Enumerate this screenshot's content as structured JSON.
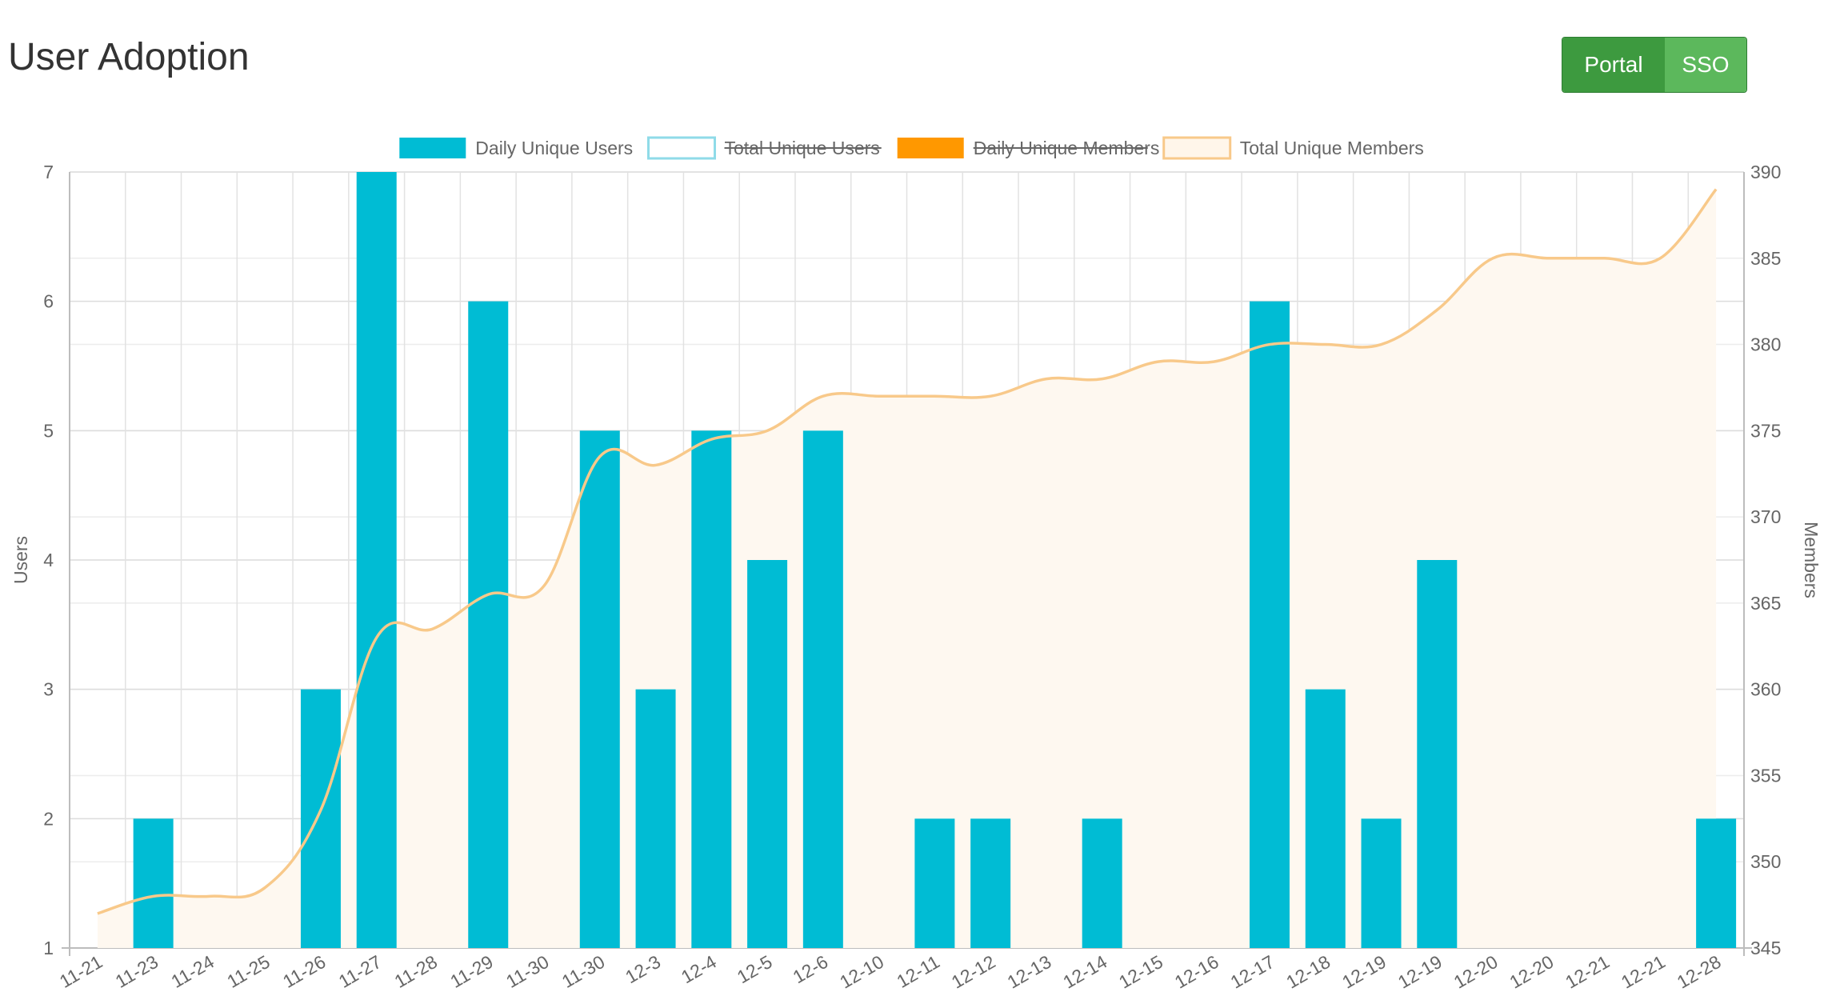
{
  "header": {
    "title": "User Adoption",
    "buttons": [
      {
        "label": "Portal",
        "active": true,
        "color": "#3d9a3f"
      },
      {
        "label": "SSO",
        "active": false,
        "color": "#5cb85c"
      }
    ]
  },
  "colors": {
    "bar": "#00bcd4",
    "total_users_outline": "#8fdbe8",
    "daily_members": "#ff9800",
    "members_line": "#f8c98a",
    "members_fill": "#fef8f0",
    "grid": "#e2e2e2",
    "text": "#666666"
  },
  "chart_data": {
    "type": "bar",
    "categories": [
      "11-21",
      "11-23",
      "11-24",
      "11-25",
      "11-26",
      "11-27",
      "11-28",
      "11-29",
      "11-30",
      "11-30",
      "12-3",
      "12-4",
      "12-5",
      "12-6",
      "12-10",
      "12-11",
      "12-12",
      "12-13",
      "12-14",
      "12-15",
      "12-16",
      "12-17",
      "12-18",
      "12-19",
      "12-19",
      "12-20",
      "12-20",
      "12-21",
      "12-21",
      "12-28"
    ],
    "legend": [
      {
        "name": "Daily Unique Users",
        "hidden": false,
        "style": "filled",
        "color": "#00bcd4"
      },
      {
        "name": "Total Unique Users",
        "hidden": true,
        "style": "outline",
        "color": "#8fdbe8"
      },
      {
        "name": "Daily Unique Members",
        "hidden": true,
        "style": "filled",
        "color": "#ff9800"
      },
      {
        "name": "Total Unique Members",
        "hidden": false,
        "style": "outline",
        "color": "#f8c98a"
      }
    ],
    "series": [
      {
        "name": "Daily Unique Users",
        "type": "bar",
        "axis": "left",
        "values": [
          null,
          2,
          null,
          null,
          3,
          7,
          null,
          6,
          null,
          5,
          3,
          5,
          4,
          5,
          null,
          2,
          2,
          null,
          2,
          null,
          null,
          6,
          3,
          2,
          4,
          null,
          null,
          null,
          null,
          2
        ]
      },
      {
        "name": "Total Unique Members",
        "type": "area",
        "axis": "right",
        "values": [
          347,
          348,
          348,
          348.5,
          353,
          363,
          363.5,
          365.5,
          366,
          373.5,
          373,
          374.5,
          375,
          377,
          377,
          377,
          377,
          378,
          378,
          379,
          379,
          380,
          380,
          380,
          382,
          385,
          385,
          385,
          385,
          389
        ]
      }
    ],
    "y_left": {
      "label": "Users",
      "min": 1,
      "max": 7,
      "ticks": [
        "1",
        "2",
        "3",
        "4",
        "5",
        "6",
        "7"
      ]
    },
    "y_right": {
      "label": "Members",
      "min": 345,
      "max": 390,
      "ticks": [
        "345",
        "350",
        "355",
        "360",
        "365",
        "370",
        "375",
        "380",
        "385",
        "390"
      ]
    },
    "grid": true,
    "legend_position": "top"
  }
}
